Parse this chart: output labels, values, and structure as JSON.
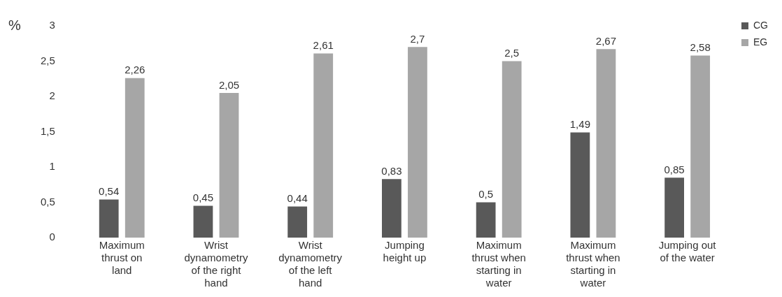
{
  "chart_data": {
    "type": "bar",
    "ylabel": "%",
    "categories": [
      "Maximum thrust on land",
      "Wrist dynamometry of the right hand",
      "Wrist dynamometry of the left hand",
      "Jumping height up",
      "Maximum thrust when starting in water",
      "Maximum thrust when starting in water",
      "Jumping out of the water"
    ],
    "series": [
      {
        "name": "CG",
        "color": "#595959",
        "values": [
          0.54,
          0.45,
          0.44,
          0.83,
          0.5,
          1.49,
          0.85
        ],
        "value_labels": [
          "0,54",
          "0,45",
          "0,44",
          "0,83",
          "0,5",
          "1,49",
          "0,85"
        ]
      },
      {
        "name": "EG",
        "color": "#a6a6a6",
        "values": [
          2.26,
          2.05,
          2.61,
          2.7,
          2.5,
          2.67,
          2.58
        ],
        "value_labels": [
          "2,26",
          "2,05",
          "2,61",
          "2,7",
          "2,5",
          "2,67",
          "2,58"
        ]
      }
    ],
    "ylim": [
      0,
      3
    ],
    "yticks": [
      0,
      {
        "value": 0.5,
        "label": "0,5"
      },
      1,
      {
        "value": 1.5,
        "label": "1,5"
      },
      2,
      {
        "value": 2.5,
        "label": "2,5"
      },
      3
    ],
    "grid": false,
    "legend": "top right"
  }
}
